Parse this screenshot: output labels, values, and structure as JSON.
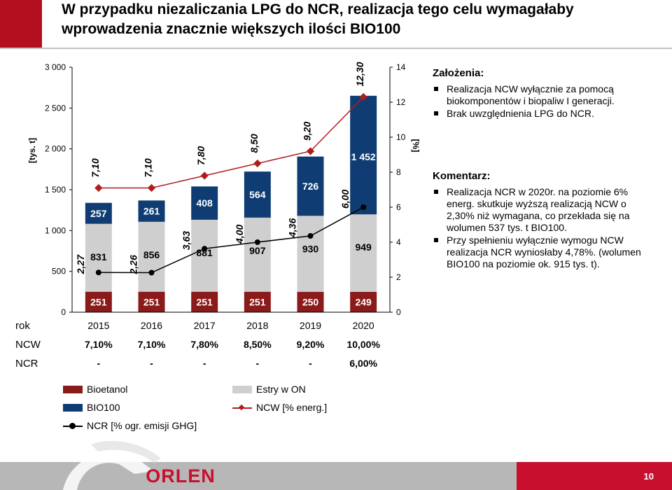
{
  "title": {
    "line1": "W przypadku niezaliczania LPG do NCR, realizacja tego celu wymagałaby",
    "line2": "wprowadzenia znacznie większych ilości BIO100"
  },
  "chart_data": {
    "type": "bar",
    "stacked": true,
    "categories": [
      "2015",
      "2016",
      "2017",
      "2018",
      "2019",
      "2020"
    ],
    "ylabel_left": "[tys. t]",
    "ylabel_right": "[%]",
    "ylim_left": [
      0,
      3000
    ],
    "ylim_right": [
      0,
      14
    ],
    "yticks_left": [
      "0",
      "500",
      "1 000",
      "1 500",
      "2 000",
      "2 500",
      "3 000"
    ],
    "yticks_right": [
      "0",
      "2",
      "4",
      "6",
      "8",
      "10",
      "12",
      "14"
    ],
    "series": [
      {
        "name": "Bioetanol",
        "values": [
          251,
          251,
          251,
          251,
          250,
          249
        ],
        "labels": [
          "251",
          "251",
          "251",
          "251",
          "250",
          "249"
        ],
        "color": "#8b1a1a",
        "axis": "left"
      },
      {
        "name": "Estry w ON",
        "values": [
          831,
          856,
          881,
          907,
          930,
          949
        ],
        "labels": [
          "831",
          "856",
          "881",
          "907",
          "930",
          "949"
        ],
        "color": "#cfcfcf",
        "axis": "left"
      },
      {
        "name": "BIO100",
        "values": [
          257,
          261,
          408,
          564,
          726,
          1452
        ],
        "labels": [
          "257",
          "261",
          "408",
          "564",
          "726",
          "1 452"
        ],
        "color": "#0f3d73",
        "axis": "left"
      },
      {
        "name": "NCW [% energ.]",
        "type": "line",
        "values": [
          7.1,
          7.1,
          7.8,
          8.5,
          9.2,
          12.3
        ],
        "labels": [
          "7,10",
          "7,10",
          "7,80",
          "8,50",
          "9,20",
          "12,30"
        ],
        "color": "#b01c1c",
        "marker": "diamond",
        "axis": "right"
      },
      {
        "name": "NCR [% ogr. emisji GHG]",
        "type": "line",
        "values": [
          2.27,
          2.26,
          3.63,
          4.0,
          4.36,
          6.0
        ],
        "labels": [
          "2,27",
          "2,26",
          "3,63",
          "4,00",
          "4,36",
          "6,00"
        ],
        "color": "#000000",
        "marker": "circle",
        "axis": "right"
      }
    ],
    "grid": false,
    "legend_position": "bottom-left"
  },
  "table": {
    "rows": [
      {
        "label": "rok",
        "values": [
          "2015",
          "2016",
          "2017",
          "2018",
          "2019",
          "2020"
        ]
      },
      {
        "label": "NCW",
        "values": [
          "7,10%",
          "7,10%",
          "7,80%",
          "8,50%",
          "9,20%",
          "10,00%"
        ]
      },
      {
        "label": "NCR",
        "values": [
          "-",
          "-",
          "-",
          "-",
          "-",
          "6,00%"
        ]
      }
    ]
  },
  "assumptions": {
    "heading": "Założenia:",
    "items": [
      "Realizacja NCW wyłącznie za pomocą biokomponentów i biopaliw I generacji.",
      "Brak uwzględnienia LPG do NCR."
    ]
  },
  "comment": {
    "heading": "Komentarz:",
    "items": [
      "Realizacja NCR w 2020r. na poziomie 6% energ. skutkuje wyższą realizacją NCW o 2,30% niż wymagana, co przekłada się na wolumen 537 tys. t BIO100.",
      "Przy spełnieniu wyłącznie wymogu NCW realizacja NCR wyniosłaby 4,78%. (wolumen BIO100 na poziomie ok. 915 tys. t)."
    ]
  },
  "legend": {
    "bioetanol": "Bioetanol",
    "estry": "Estry w ON",
    "bio100": "BIO100",
    "ncw": "NCW [% energ.]",
    "ncr": "NCR [% ogr. emisji GHG]"
  },
  "colors": {
    "bioetanol": "#8b1a1a",
    "estry": "#cfcfcf",
    "bio100": "#0f3d73",
    "ncw": "#b01c1c",
    "ncr": "#000000",
    "brand_red": "#c8102e"
  },
  "brand": {
    "name": "ORLEN"
  },
  "footer": {
    "page_number": "10"
  }
}
